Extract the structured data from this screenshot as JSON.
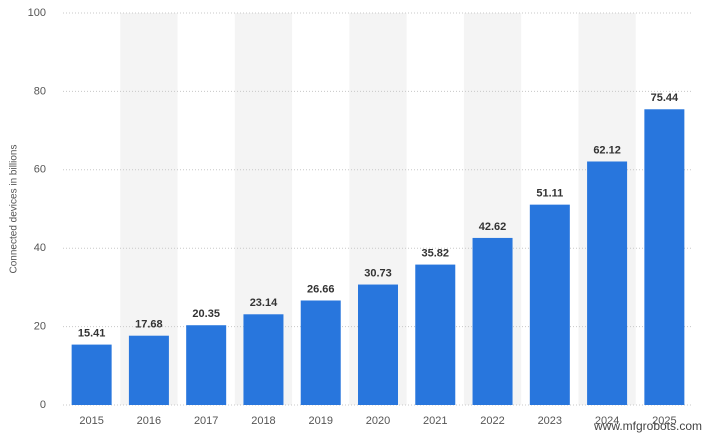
{
  "chart_data": {
    "type": "bar",
    "y_label": "Connected devices in billions",
    "categories": [
      "2015",
      "2016",
      "2017",
      "2018",
      "2019",
      "2020",
      "2021",
      "2022",
      "2023",
      "2024",
      "2025"
    ],
    "values": [
      15.41,
      17.68,
      20.35,
      23.14,
      26.66,
      30.73,
      35.82,
      42.62,
      51.11,
      62.12,
      75.44
    ],
    "color": "#2876dd",
    "ylim": [
      0,
      100
    ],
    "yticks": [
      0,
      20,
      40,
      60,
      80,
      100
    ],
    "grid": true,
    "watermark": "www.mfgrobots.com"
  }
}
